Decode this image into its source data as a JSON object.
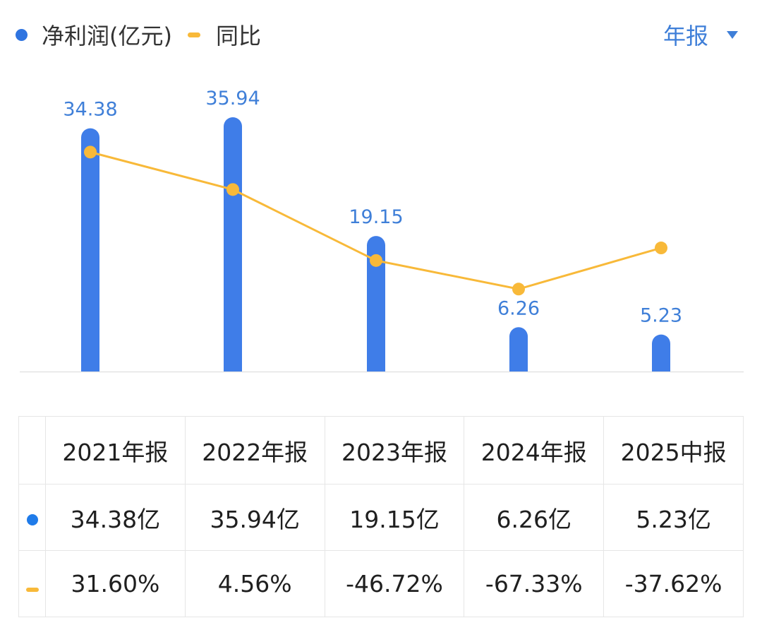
{
  "legend": {
    "profit_label": "净利润(亿元)",
    "yoy_label": "同比"
  },
  "period_select": {
    "label": "年报"
  },
  "colors": {
    "bar": "#3f7de8",
    "line": "#f8b939",
    "bar_label": "#3f7fd8",
    "positive": "#e05252",
    "negative": "#33a070"
  },
  "chart_data": {
    "type": "bar",
    "categories": [
      "2021年报",
      "2022年报",
      "2023年报",
      "2024年报",
      "2025中报"
    ],
    "series": [
      {
        "name": "净利润(亿元)",
        "type": "bar",
        "values": [
          34.38,
          35.94,
          19.15,
          6.26,
          5.23
        ],
        "labels": [
          "34.38",
          "35.94",
          "19.15",
          "6.26",
          "5.23"
        ]
      },
      {
        "name": "同比",
        "type": "line",
        "values": [
          31.6,
          4.56,
          -46.72,
          -67.33,
          -37.62
        ]
      }
    ],
    "grid": false,
    "legend_position": "top-left"
  },
  "table": {
    "headers": [
      "2021年报",
      "2022年报",
      "2023年报",
      "2024年报",
      "2025中报"
    ],
    "profit_row": [
      "34.38亿",
      "35.94亿",
      "19.15亿",
      "6.26亿",
      "5.23亿"
    ],
    "yoy_row": [
      "31.60%",
      "4.56%",
      "-46.72%",
      "-67.33%",
      "-37.62%"
    ]
  }
}
